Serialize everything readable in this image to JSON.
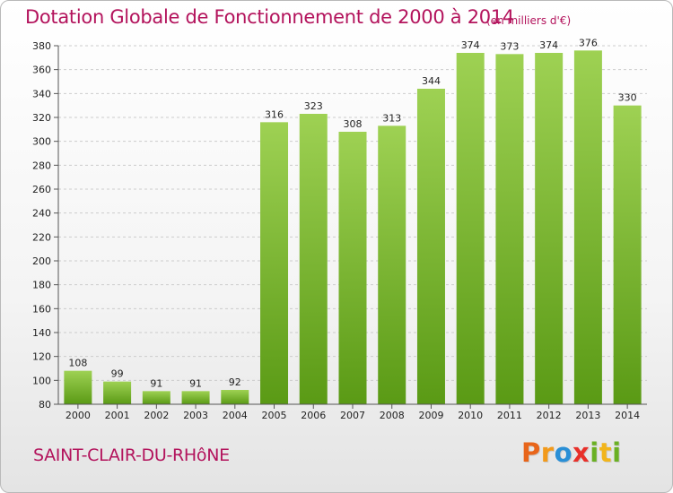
{
  "title": "Dotation Globale de Fonctionnement de 2000 à 2014",
  "subtitle": "(en milliers d'€)",
  "commune": "SAINT-CLAIR-DU-RHôNE",
  "brand": {
    "letters": [
      "P",
      "r",
      "o",
      "x",
      "i",
      "t",
      "i"
    ],
    "colors": [
      "#e8651a",
      "#f29a1b",
      "#2a8fd6",
      "#e8302a",
      "#6ab023",
      "#f2b51b",
      "#6ab023"
    ]
  },
  "colors": {
    "accent": "#b3135c",
    "bar_light": "#9ed153",
    "bar_dark": "#5a9a15",
    "grid": "#cccccc",
    "axis": "#555555",
    "text": "#222222"
  },
  "chart_data": {
    "type": "bar",
    "categories": [
      "2000",
      "2001",
      "2002",
      "2003",
      "2004",
      "2005",
      "2006",
      "2007",
      "2008",
      "2009",
      "2010",
      "2011",
      "2012",
      "2013",
      "2014"
    ],
    "values": [
      108,
      99,
      91,
      91,
      92,
      316,
      323,
      308,
      313,
      344,
      374,
      373,
      374,
      376,
      330
    ],
    "title": "Dotation Globale de Fonctionnement de 2000 à 2014",
    "ylim": [
      80,
      380
    ],
    "yticks": [
      80,
      100,
      120,
      140,
      160,
      180,
      200,
      220,
      240,
      260,
      280,
      300,
      320,
      340,
      360,
      380
    ],
    "grid": true
  }
}
